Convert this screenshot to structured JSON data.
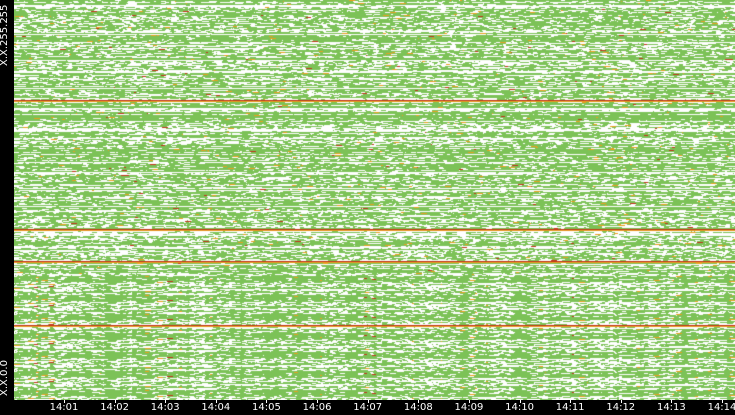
{
  "chart_data": {
    "type": "heatmap",
    "title": "",
    "xlabel": "",
    "ylabel": "",
    "x_ticks": [
      "14:01",
      "14:02",
      "14:03",
      "14:04",
      "14:05",
      "14:06",
      "14:07",
      "14:08",
      "14:09",
      "14:10",
      "14:11",
      "14:12",
      "14:13",
      "14:14"
    ],
    "y_ticks": [
      "X.X.255.255",
      "X.X.0.0"
    ],
    "colors": {
      "background": "#ffffff",
      "low": "#7cc257",
      "mid": "#e8a020",
      "high": "#c0341c",
      "axis": "#000000",
      "text": "#ffffff"
    },
    "legend": "none",
    "grid": false
  }
}
